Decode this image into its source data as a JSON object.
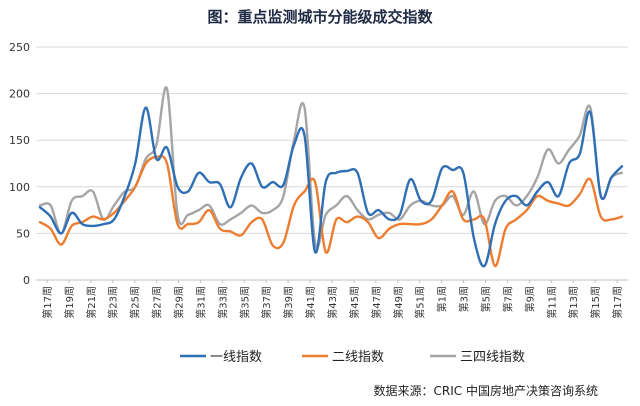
{
  "chart_data": {
    "type": "line",
    "title": "图：重点监测城市分能级成交指数",
    "source": "数据来源：CRIC 中国房地产决策咨询系统",
    "ylim": [
      0,
      250
    ],
    "yticks": [
      0,
      50,
      100,
      150,
      200,
      250
    ],
    "grid": true,
    "legend_position": "bottom",
    "x_tick_labels": [
      "第17周",
      "第19周",
      "第21周",
      "第23周",
      "第25周",
      "第27周",
      "第29周",
      "第31周",
      "第33周",
      "第35周",
      "第37周",
      "第39周",
      "第41周",
      "第43周",
      "第45周",
      "第47周",
      "第49周",
      "第51周",
      "第1周",
      "第3周",
      "第5周",
      "第7周",
      "第9周",
      "第11周",
      "第13周",
      "第15周",
      "第17周"
    ],
    "series": [
      {
        "name": "一线指数",
        "color": "#2e6fb5",
        "values": [
          78,
          68,
          50,
          72,
          60,
          58,
          60,
          65,
          90,
          125,
          185,
          130,
          142,
          100,
          95,
          115,
          105,
          103,
          78,
          110,
          125,
          100,
          105,
          102,
          145,
          155,
          30,
          105,
          115,
          117,
          115,
          72,
          75,
          65,
          70,
          108,
          85,
          85,
          120,
          118,
          115,
          45,
          15,
          60,
          85,
          90,
          80,
          95,
          105,
          90,
          125,
          135,
          180,
          90,
          110,
          122
        ]
      },
      {
        "name": "二线指数",
        "color": "#ed7d31",
        "values": [
          62,
          55,
          38,
          58,
          62,
          68,
          65,
          72,
          85,
          100,
          125,
          132,
          125,
          60,
          60,
          62,
          75,
          55,
          52,
          48,
          62,
          65,
          37,
          40,
          80,
          95,
          105,
          30,
          65,
          62,
          68,
          62,
          45,
          55,
          60,
          60,
          60,
          65,
          80,
          95,
          65,
          65,
          65,
          15,
          55,
          65,
          75,
          90,
          85,
          82,
          80,
          92,
          108,
          68,
          65,
          68
        ]
      },
      {
        "name": "三四线指数",
        "color": "#a5a5a5",
        "values": [
          80,
          80,
          50,
          85,
          90,
          95,
          65,
          80,
          95,
          100,
          130,
          145,
          205,
          70,
          70,
          75,
          80,
          60,
          65,
          72,
          80,
          72,
          75,
          90,
          150,
          185,
          40,
          70,
          80,
          90,
          75,
          65,
          70,
          72,
          65,
          80,
          85,
          80,
          80,
          90,
          70,
          95,
          60,
          85,
          90,
          80,
          90,
          110,
          140,
          125,
          140,
          155,
          185,
          90,
          110,
          115
        ]
      }
    ]
  }
}
